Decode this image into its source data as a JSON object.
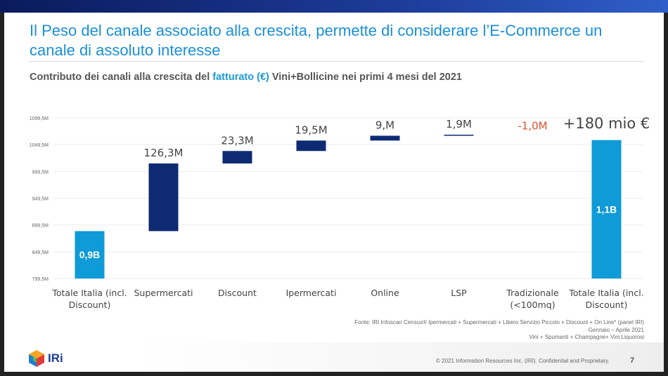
{
  "title": "Il Peso del canale associato alla crescita, permette di considerare l’E-Commerce un canale  di assoluto interesse",
  "subtitle": {
    "pre": "Contributo dei canali alla crescita del ",
    "highlight": "fatturato (€)",
    "post": " Vini+Bollicine nei primi 4 mesi del 2021"
  },
  "colors": {
    "title": "#1a8fd6",
    "total_bar": "#0f9ad8",
    "increment_bar": "#0d2a73",
    "negative_label": "#d9532b"
  },
  "chart_data": {
    "type": "waterfall",
    "ylim": [
      799.5,
      1099.5
    ],
    "yticks": [
      "799,5M",
      "849,5M",
      "899,5M",
      "949,5M",
      "999,5M",
      "1049,5M",
      "1099,5M"
    ],
    "ytick_values": [
      799.5,
      849.5,
      899.5,
      949.5,
      999.5,
      1049.5,
      1099.5
    ],
    "grid": true,
    "categories": [
      "Totale Italia (incl. Discount)",
      "Supermercati",
      "Discount",
      "Ipermercati",
      "Online",
      "LSP",
      "Tradizionale (<100mq)",
      "Totale Italia (incl. Discount)"
    ],
    "bars": [
      {
        "kind": "total",
        "value": 888,
        "label": "0,9B"
      },
      {
        "kind": "delta",
        "value": 126.3,
        "label": "126,3M"
      },
      {
        "kind": "delta",
        "value": 23.3,
        "label": "23,3M"
      },
      {
        "kind": "delta",
        "value": 19.5,
        "label": "19,5M"
      },
      {
        "kind": "delta",
        "value": 9.0,
        "label": "9,M"
      },
      {
        "kind": "delta",
        "value": 1.9,
        "label": "1,9M"
      },
      {
        "kind": "delta",
        "value": -1.0,
        "label": "-1,0M"
      },
      {
        "kind": "total",
        "value": 1058,
        "label": "1,1B"
      }
    ],
    "annotation": "+180 mio €"
  },
  "source": [
    "Fonte: IRI Infoscan Census® Ipermercati + Supermercati + Libero Servizio Piccolo + Discount + On Line* (panel IRI)",
    "Gennaio – Aprile 2021",
    "Vini + Spumanti + Champagne+ Vini Liquorosi"
  ],
  "footer": {
    "copyright": "© 2021 Information Resources Inc. (IRI). Confidential and Proprietary.",
    "page": "7",
    "logo": "IRi"
  }
}
